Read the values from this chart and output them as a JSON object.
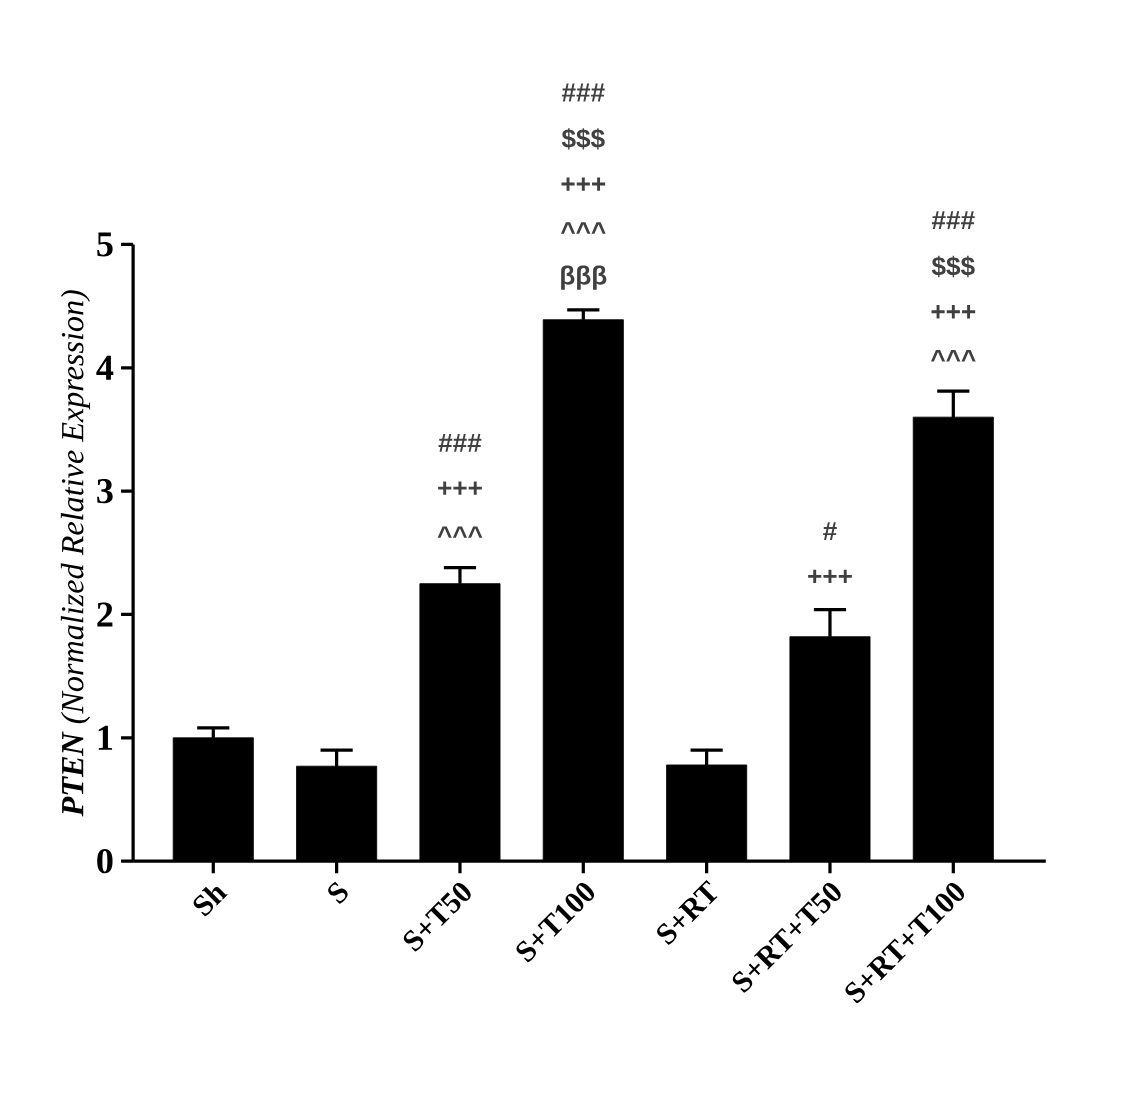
{
  "chart_data": {
    "type": "bar",
    "ylabel": "**PTEN** (Normalized Relative Expression)",
    "categories": [
      "Sh",
      "S",
      "S+T50",
      "S+T100",
      "S+RT",
      "S+RT+T50",
      "S+RT+T100"
    ],
    "values": [
      1.0,
      0.77,
      2.25,
      4.39,
      0.78,
      1.82,
      3.6
    ],
    "errors": [
      0.08,
      0.13,
      0.13,
      0.08,
      0.12,
      0.22,
      0.21
    ],
    "color": "#000000",
    "ylim": [
      0,
      5
    ],
    "yticks": [
      0,
      1,
      2,
      3,
      4,
      5
    ],
    "grid": false,
    "annotations": [
      "###",
      "+++",
      "^^^",
      "###",
      "$$$",
      "+++",
      "^^^",
      "βββ",
      "#",
      "+++",
      "###",
      "$$$",
      "+++",
      "^^^"
    ]
  }
}
